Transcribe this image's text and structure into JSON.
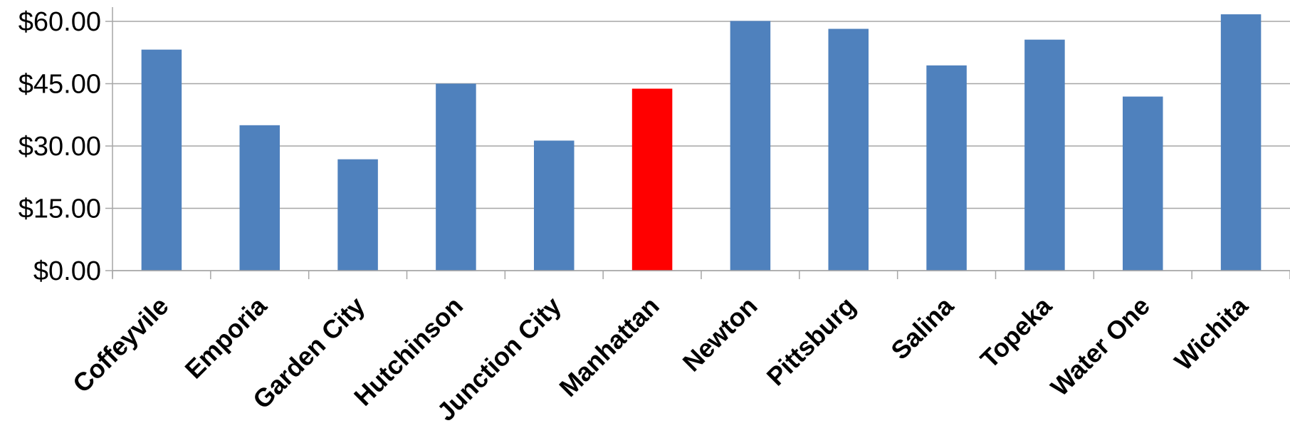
{
  "chart_data": {
    "type": "bar",
    "categories": [
      "Coffeyvile",
      "Emporia",
      "Garden City",
      "Hutchinson",
      "Junction City",
      "Manhattan",
      "Newton",
      "Pittsburg",
      "Salina",
      "Topeka",
      "Water One",
      "Wichita"
    ],
    "series": [
      {
        "values": [
          53.2,
          35.0,
          26.8,
          45.0,
          31.3,
          43.8,
          60.1,
          58.2,
          49.4,
          55.6,
          41.9,
          61.7
        ]
      }
    ],
    "highlight_category": "Manhattan",
    "colors": {
      "bar": "#4f81bd",
      "highlight": "#ff0000",
      "grid": "#a6a6a6",
      "axis": "#a6a6a6"
    },
    "yticks": [
      "$0.00",
      "$15.00",
      "$30.00",
      "$45.00",
      "$60.00"
    ],
    "ytick_values": [
      0,
      15,
      30,
      45,
      60
    ],
    "ylim": [
      0,
      60
    ],
    "title": "",
    "xlabel": "",
    "ylabel": "",
    "grid": true,
    "legend": "none"
  }
}
